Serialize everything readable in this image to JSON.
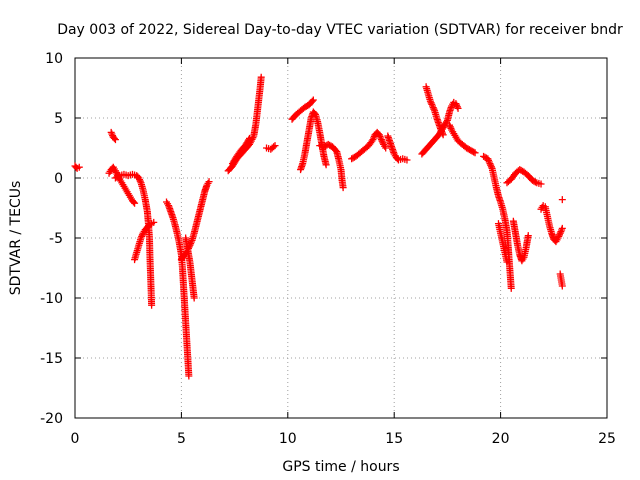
{
  "chart_data": {
    "type": "scatter",
    "title": "Day 003 of 2022, Sidereal Day-to-day VTEC variation (SDTVAR) for receiver bndr",
    "xlabel": "GPS time / hours",
    "ylabel": "SDTVAR / TECUs",
    "xlim": [
      0,
      25
    ],
    "ylim": [
      -20,
      10
    ],
    "xticks": [
      0,
      5,
      10,
      15,
      20,
      25
    ],
    "yticks": [
      -20,
      -15,
      -10,
      -5,
      0,
      5,
      10
    ],
    "grid": true,
    "marker": "+",
    "series": [
      {
        "name": "SDTVAR",
        "color": "#ff0000",
        "segments": [
          [
            [
              0.0,
              1.0
            ],
            [
              0.1,
              0.8
            ],
            [
              0.2,
              0.9
            ]
          ],
          [
            [
              1.7,
              3.8
            ],
            [
              1.8,
              3.4
            ],
            [
              1.9,
              3.2
            ]
          ],
          [
            [
              1.6,
              0.4
            ],
            [
              1.7,
              0.7
            ],
            [
              1.8,
              0.9
            ],
            [
              1.9,
              0.6
            ],
            [
              2.0,
              0.2
            ],
            [
              2.1,
              -0.1
            ],
            [
              2.2,
              -0.4
            ],
            [
              2.3,
              -0.7
            ],
            [
              2.4,
              -1.0
            ],
            [
              2.5,
              -1.3
            ],
            [
              2.6,
              -1.6
            ],
            [
              2.7,
              -1.9
            ],
            [
              2.8,
              -2.1
            ]
          ],
          [
            [
              1.9,
              0.0
            ],
            [
              2.1,
              0.2
            ],
            [
              2.3,
              0.3
            ],
            [
              2.5,
              0.2
            ],
            [
              2.7,
              0.3
            ],
            [
              2.9,
              0.2
            ],
            [
              3.0,
              0.0
            ],
            [
              3.1,
              -0.4
            ],
            [
              3.2,
              -1.0
            ],
            [
              3.3,
              -1.8
            ],
            [
              3.4,
              -2.8
            ],
            [
              3.45,
              -3.8
            ],
            [
              3.5,
              -5.0
            ],
            [
              3.52,
              -6.5
            ],
            [
              3.55,
              -8.0
            ],
            [
              3.58,
              -9.5
            ],
            [
              3.6,
              -10.6
            ]
          ],
          [
            [
              2.8,
              -6.8
            ],
            [
              2.9,
              -6.2
            ],
            [
              3.0,
              -5.6
            ],
            [
              3.1,
              -5.0
            ],
            [
              3.2,
              -4.6
            ],
            [
              3.3,
              -4.3
            ],
            [
              3.4,
              -4.1
            ],
            [
              3.5,
              -3.9
            ],
            [
              3.6,
              -3.8
            ],
            [
              3.7,
              -3.7
            ]
          ],
          [
            [
              4.3,
              -2.0
            ],
            [
              4.4,
              -2.3
            ],
            [
              4.5,
              -2.8
            ],
            [
              4.6,
              -3.3
            ],
            [
              4.7,
              -3.9
            ],
            [
              4.8,
              -4.6
            ],
            [
              4.9,
              -5.4
            ],
            [
              5.0,
              -6.4
            ],
            [
              5.05,
              -7.5
            ],
            [
              5.1,
              -9.0
            ],
            [
              5.15,
              -10.5
            ],
            [
              5.2,
              -12.0
            ],
            [
              5.25,
              -13.5
            ],
            [
              5.3,
              -15.0
            ],
            [
              5.35,
              -16.5
            ]
          ],
          [
            [
              5.0,
              -6.8
            ],
            [
              5.1,
              -6.5
            ],
            [
              5.2,
              -6.3
            ],
            [
              5.3,
              -6.0
            ],
            [
              5.4,
              -5.6
            ],
            [
              5.5,
              -5.2
            ],
            [
              5.6,
              -4.6
            ],
            [
              5.7,
              -3.9
            ],
            [
              5.8,
              -3.2
            ],
            [
              5.9,
              -2.5
            ],
            [
              6.0,
              -1.8
            ],
            [
              6.1,
              -1.1
            ],
            [
              6.2,
              -0.6
            ],
            [
              6.3,
              -0.3
            ]
          ],
          [
            [
              5.2,
              -5.0
            ],
            [
              5.3,
              -6.0
            ],
            [
              5.4,
              -7.0
            ],
            [
              5.5,
              -8.5
            ],
            [
              5.6,
              -10.0
            ]
          ],
          [
            [
              7.2,
              0.6
            ],
            [
              7.4,
              1.0
            ],
            [
              7.6,
              1.6
            ],
            [
              7.8,
              2.0
            ],
            [
              8.0,
              2.4
            ],
            [
              8.2,
              2.8
            ],
            [
              8.4,
              3.5
            ],
            [
              8.5,
              4.5
            ],
            [
              8.6,
              6.0
            ],
            [
              8.7,
              7.5
            ],
            [
              8.75,
              8.4
            ]
          ],
          [
            [
              7.4,
              1.2
            ],
            [
              7.6,
              1.8
            ],
            [
              7.8,
              2.3
            ],
            [
              8.0,
              2.7
            ],
            [
              8.2,
              3.3
            ]
          ],
          [
            [
              9.0,
              2.5
            ],
            [
              9.2,
              2.4
            ],
            [
              9.4,
              2.7
            ]
          ],
          [
            [
              10.2,
              4.9
            ],
            [
              10.4,
              5.3
            ],
            [
              10.6,
              5.6
            ],
            [
              10.8,
              5.9
            ],
            [
              11.0,
              6.1
            ],
            [
              11.1,
              6.3
            ],
            [
              11.2,
              6.5
            ]
          ],
          [
            [
              10.6,
              0.7
            ],
            [
              10.7,
              1.2
            ],
            [
              10.8,
              2.0
            ],
            [
              10.9,
              3.0
            ],
            [
              11.0,
              4.0
            ],
            [
              11.1,
              5.0
            ],
            [
              11.2,
              5.5
            ],
            [
              11.3,
              5.3
            ],
            [
              11.4,
              4.7
            ],
            [
              11.5,
              3.8
            ],
            [
              11.6,
              2.8
            ],
            [
              11.7,
              1.8
            ],
            [
              11.8,
              1.1
            ]
          ],
          [
            [
              11.5,
              2.7
            ],
            [
              11.7,
              2.6
            ],
            [
              11.9,
              2.8
            ],
            [
              12.1,
              2.6
            ],
            [
              12.3,
              2.2
            ],
            [
              12.4,
              1.5
            ],
            [
              12.5,
              0.7
            ],
            [
              12.55,
              -0.2
            ],
            [
              12.6,
              -0.8
            ]
          ],
          [
            [
              13.0,
              1.6
            ],
            [
              13.2,
              1.8
            ],
            [
              13.4,
              2.1
            ],
            [
              13.6,
              2.4
            ],
            [
              13.8,
              2.7
            ],
            [
              14.0,
              3.2
            ],
            [
              14.1,
              3.6
            ],
            [
              14.2,
              3.8
            ],
            [
              14.3,
              3.6
            ],
            [
              14.4,
              3.2
            ],
            [
              14.5,
              2.8
            ],
            [
              14.6,
              2.5
            ]
          ],
          [
            [
              14.7,
              3.5
            ],
            [
              14.8,
              3.0
            ],
            [
              14.9,
              2.5
            ],
            [
              15.0,
              2.0
            ],
            [
              15.1,
              1.7
            ],
            [
              15.2,
              1.5
            ],
            [
              15.4,
              1.6
            ],
            [
              15.6,
              1.5
            ]
          ],
          [
            [
              16.3,
              2.0
            ],
            [
              16.5,
              2.4
            ],
            [
              16.7,
              2.8
            ],
            [
              16.9,
              3.2
            ],
            [
              17.1,
              3.6
            ],
            [
              17.3,
              4.2
            ],
            [
              17.5,
              4.8
            ],
            [
              17.6,
              5.5
            ],
            [
              17.7,
              6.0
            ],
            [
              17.8,
              6.3
            ],
            [
              17.9,
              6.2
            ],
            [
              18.0,
              5.8
            ]
          ],
          [
            [
              16.5,
              7.6
            ],
            [
              16.6,
              7.0
            ],
            [
              16.7,
              6.4
            ],
            [
              16.8,
              6.0
            ],
            [
              16.9,
              5.6
            ],
            [
              17.0,
              5.0
            ],
            [
              17.1,
              4.5
            ],
            [
              17.2,
              4.0
            ],
            [
              17.3,
              3.6
            ]
          ],
          [
            [
              17.6,
              4.4
            ],
            [
              17.7,
              4.0
            ],
            [
              17.8,
              3.7
            ],
            [
              17.9,
              3.4
            ],
            [
              18.0,
              3.1
            ],
            [
              18.2,
              2.8
            ],
            [
              18.4,
              2.5
            ],
            [
              18.6,
              2.3
            ],
            [
              18.8,
              2.1
            ]
          ],
          [
            [
              19.2,
              1.8
            ],
            [
              19.4,
              1.6
            ],
            [
              19.6,
              0.8
            ],
            [
              19.7,
              0.0
            ],
            [
              19.8,
              -0.8
            ],
            [
              19.9,
              -1.5
            ],
            [
              20.0,
              -2.0
            ],
            [
              20.1,
              -2.6
            ],
            [
              20.2,
              -3.4
            ],
            [
              20.3,
              -4.4
            ],
            [
              20.35,
              -5.5
            ],
            [
              20.4,
              -6.8
            ],
            [
              20.45,
              -8.0
            ],
            [
              20.5,
              -9.2
            ]
          ],
          [
            [
              19.9,
              -3.8
            ],
            [
              20.0,
              -4.6
            ],
            [
              20.1,
              -5.4
            ],
            [
              20.2,
              -6.2
            ],
            [
              20.3,
              -7.0
            ]
          ],
          [
            [
              20.3,
              -0.4
            ],
            [
              20.5,
              -0.1
            ],
            [
              20.7,
              0.4
            ],
            [
              20.9,
              0.7
            ],
            [
              21.1,
              0.5
            ],
            [
              21.3,
              0.2
            ],
            [
              21.5,
              -0.2
            ],
            [
              21.7,
              -0.4
            ],
            [
              21.9,
              -0.5
            ]
          ],
          [
            [
              20.6,
              -3.6
            ],
            [
              20.7,
              -4.6
            ],
            [
              20.8,
              -5.6
            ],
            [
              20.9,
              -6.4
            ],
            [
              21.0,
              -6.9
            ],
            [
              21.1,
              -6.6
            ],
            [
              21.2,
              -5.8
            ],
            [
              21.3,
              -4.8
            ]
          ],
          [
            [
              21.9,
              -2.6
            ],
            [
              22.0,
              -2.3
            ],
            [
              22.1,
              -2.4
            ],
            [
              22.2,
              -3.2
            ],
            [
              22.3,
              -4.0
            ],
            [
              22.4,
              -4.6
            ],
            [
              22.5,
              -5.1
            ],
            [
              22.6,
              -5.3
            ],
            [
              22.7,
              -5.0
            ],
            [
              22.8,
              -4.6
            ],
            [
              22.9,
              -4.2
            ]
          ],
          [
            [
              22.8,
              -8.0
            ],
            [
              22.85,
              -8.5
            ],
            [
              22.9,
              -9.0
            ]
          ],
          [
            [
              22.9,
              -1.8
            ]
          ]
        ]
      }
    ]
  }
}
